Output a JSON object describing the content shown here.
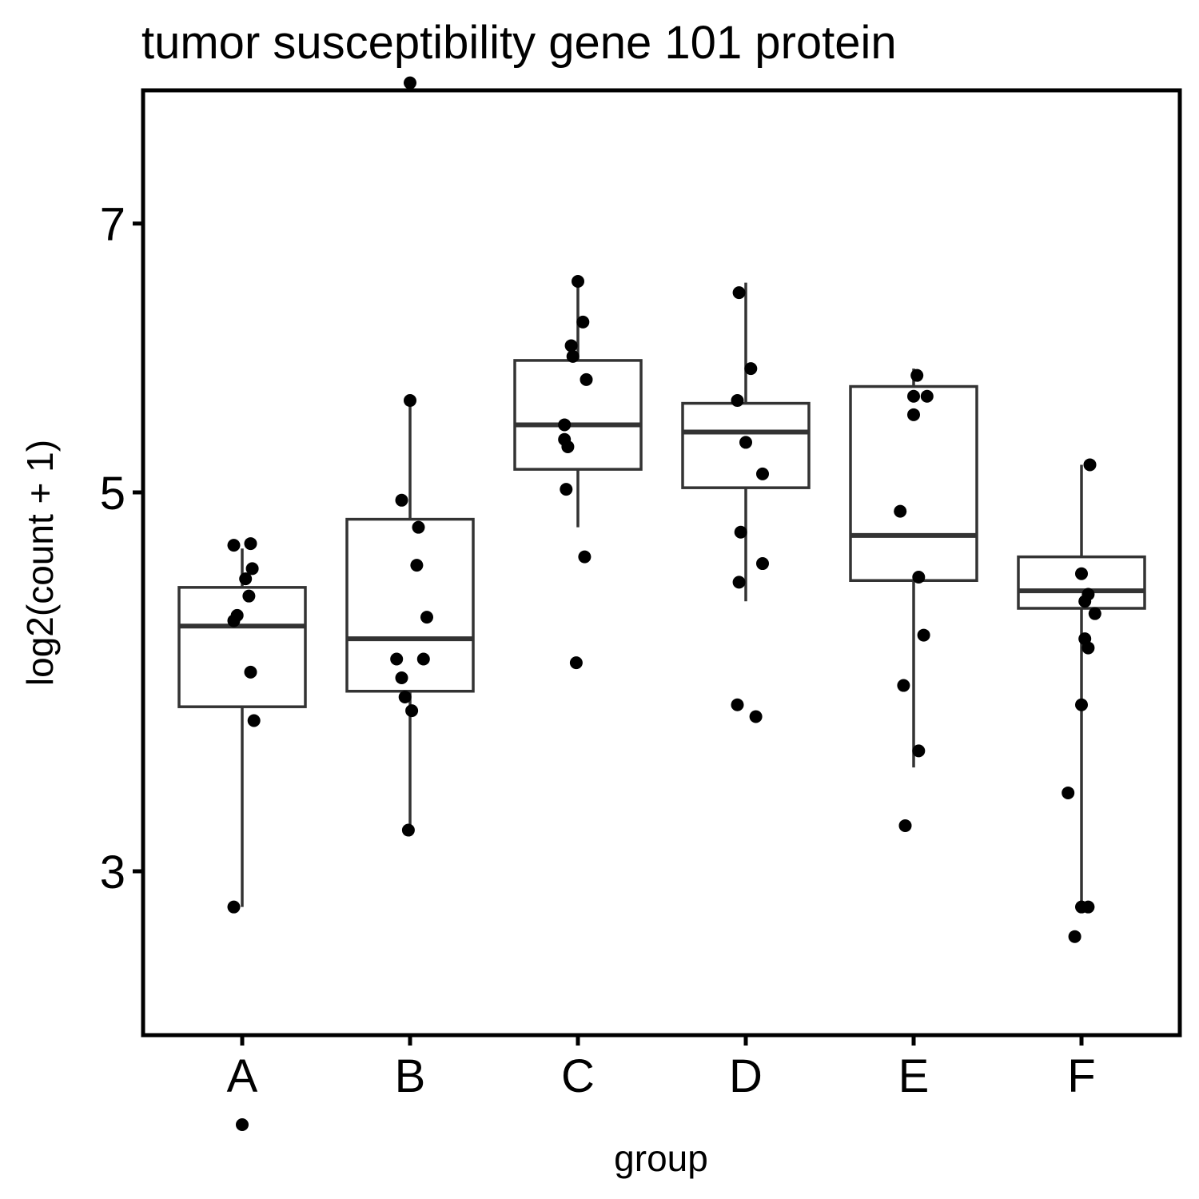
{
  "chart_data": {
    "type": "box",
    "title": "tumor susceptibility gene 101 protein",
    "xlabel": "group",
    "ylabel": "log2(count + 1)",
    "ylim": [
      1.7,
      8.5
    ],
    "yticks": [
      3,
      5,
      7
    ],
    "grid": false,
    "legend": "none",
    "categories": [
      "A",
      "B",
      "C",
      "D",
      "E",
      "F"
    ],
    "boxes": [
      {
        "group": "A",
        "whisker_low": 2.85,
        "q1": 3.77,
        "median": 4.2,
        "q3": 4.42,
        "whisker_high": 4.65
      },
      {
        "group": "B",
        "whisker_low": 3.18,
        "q1": 3.85,
        "median": 4.13,
        "q3": 4.83,
        "whisker_high": 5.6
      },
      {
        "group": "C",
        "whisker_low": 4.78,
        "q1": 5.15,
        "median": 5.45,
        "q3": 5.91,
        "whisker_high": 6.5
      },
      {
        "group": "D",
        "whisker_low": 4.34,
        "q1": 5.03,
        "median": 5.4,
        "q3": 5.6,
        "whisker_high": 6.51
      },
      {
        "group": "E",
        "whisker_low": 3.47,
        "q1": 4.46,
        "median": 4.73,
        "q3": 5.72,
        "whisker_high": 5.85
      },
      {
        "group": "F",
        "whisker_low": 2.85,
        "q1": 4.3,
        "median": 4.4,
        "q3": 4.6,
        "whisker_high": 5.18
      }
    ],
    "points": [
      {
        "group": "A",
        "x_offset": -0.05,
        "y": 4.67
      },
      {
        "group": "A",
        "x_offset": 0.05,
        "y": 4.68
      },
      {
        "group": "A",
        "x_offset": 0.06,
        "y": 4.53
      },
      {
        "group": "A",
        "x_offset": 0.02,
        "y": 4.47
      },
      {
        "group": "A",
        "x_offset": 0.04,
        "y": 4.37
      },
      {
        "group": "A",
        "x_offset": -0.03,
        "y": 4.26
      },
      {
        "group": "A",
        "x_offset": -0.05,
        "y": 4.23
      },
      {
        "group": "A",
        "x_offset": 0.05,
        "y": 3.95
      },
      {
        "group": "A",
        "x_offset": 0.07,
        "y": 3.7
      },
      {
        "group": "A",
        "x_offset": -0.05,
        "y": 2.85
      },
      {
        "group": "A",
        "x_offset": 0.0,
        "y": 2.05
      },
      {
        "group": "B",
        "x_offset": 0.0,
        "y": 8.3
      },
      {
        "group": "B",
        "x_offset": 0.0,
        "y": 5.62
      },
      {
        "group": "B",
        "x_offset": -0.05,
        "y": 4.95
      },
      {
        "group": "B",
        "x_offset": 0.05,
        "y": 4.78
      },
      {
        "group": "B",
        "x_offset": 0.04,
        "y": 4.55
      },
      {
        "group": "B",
        "x_offset": 0.1,
        "y": 4.25
      },
      {
        "group": "B",
        "x_offset": -0.08,
        "y": 4.02
      },
      {
        "group": "B",
        "x_offset": 0.08,
        "y": 4.02
      },
      {
        "group": "B",
        "x_offset": -0.05,
        "y": 3.92
      },
      {
        "group": "B",
        "x_offset": -0.03,
        "y": 3.82
      },
      {
        "group": "B",
        "x_offset": 0.01,
        "y": 3.75
      },
      {
        "group": "B",
        "x_offset": -0.01,
        "y": 3.18
      },
      {
        "group": "C",
        "x_offset": 0.0,
        "y": 6.52
      },
      {
        "group": "C",
        "x_offset": 0.03,
        "y": 6.2
      },
      {
        "group": "C",
        "x_offset": -0.04,
        "y": 6.02
      },
      {
        "group": "C",
        "x_offset": -0.03,
        "y": 5.94
      },
      {
        "group": "C",
        "x_offset": 0.05,
        "y": 5.77
      },
      {
        "group": "C",
        "x_offset": -0.08,
        "y": 5.45
      },
      {
        "group": "C",
        "x_offset": -0.08,
        "y": 5.35
      },
      {
        "group": "C",
        "x_offset": -0.06,
        "y": 5.3
      },
      {
        "group": "C",
        "x_offset": -0.07,
        "y": 5.02
      },
      {
        "group": "C",
        "x_offset": 0.04,
        "y": 4.6
      },
      {
        "group": "C",
        "x_offset": -0.01,
        "y": 4.0
      },
      {
        "group": "D",
        "x_offset": -0.04,
        "y": 6.43
      },
      {
        "group": "D",
        "x_offset": 0.03,
        "y": 5.85
      },
      {
        "group": "D",
        "x_offset": -0.05,
        "y": 5.62
      },
      {
        "group": "D",
        "x_offset": 0.0,
        "y": 5.33
      },
      {
        "group": "D",
        "x_offset": 0.1,
        "y": 5.12
      },
      {
        "group": "D",
        "x_offset": -0.03,
        "y": 4.75
      },
      {
        "group": "D",
        "x_offset": 0.1,
        "y": 4.56
      },
      {
        "group": "D",
        "x_offset": -0.04,
        "y": 4.45
      },
      {
        "group": "D",
        "x_offset": -0.05,
        "y": 3.78
      },
      {
        "group": "D",
        "x_offset": 0.06,
        "y": 3.72
      },
      {
        "group": "E",
        "x_offset": 0.02,
        "y": 5.8
      },
      {
        "group": "E",
        "x_offset": 0.0,
        "y": 5.65
      },
      {
        "group": "E",
        "x_offset": 0.08,
        "y": 5.65
      },
      {
        "group": "E",
        "x_offset": 0.0,
        "y": 5.52
      },
      {
        "group": "E",
        "x_offset": -0.08,
        "y": 4.88
      },
      {
        "group": "E",
        "x_offset": 0.03,
        "y": 4.48
      },
      {
        "group": "E",
        "x_offset": 0.06,
        "y": 4.15
      },
      {
        "group": "E",
        "x_offset": -0.06,
        "y": 3.88
      },
      {
        "group": "E",
        "x_offset": 0.03,
        "y": 3.55
      },
      {
        "group": "E",
        "x_offset": -0.05,
        "y": 3.2
      },
      {
        "group": "F",
        "x_offset": 0.05,
        "y": 5.18
      },
      {
        "group": "F",
        "x_offset": 0.0,
        "y": 4.5
      },
      {
        "group": "F",
        "x_offset": 0.04,
        "y": 4.38
      },
      {
        "group": "F",
        "x_offset": 0.02,
        "y": 4.34
      },
      {
        "group": "F",
        "x_offset": 0.08,
        "y": 4.27
      },
      {
        "group": "F",
        "x_offset": 0.02,
        "y": 4.13
      },
      {
        "group": "F",
        "x_offset": 0.04,
        "y": 4.08
      },
      {
        "group": "F",
        "x_offset": 0.0,
        "y": 3.78
      },
      {
        "group": "F",
        "x_offset": -0.08,
        "y": 3.35
      },
      {
        "group": "F",
        "x_offset": -0.04,
        "y": 2.73
      },
      {
        "group": "F",
        "x_offset": 0.0,
        "y": 2.85
      },
      {
        "group": "F",
        "x_offset": 0.04,
        "y": 2.85
      }
    ]
  }
}
